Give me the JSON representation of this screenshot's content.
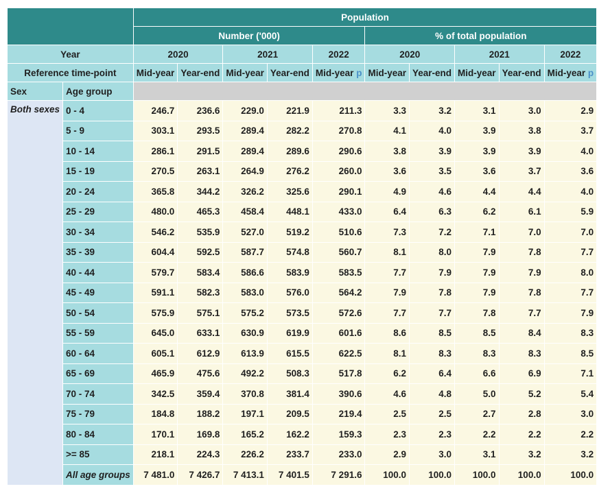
{
  "header": {
    "population": "Population",
    "number": "Number ('000)",
    "percent": "% of total population",
    "year_label": "Year",
    "years": [
      "2020",
      "2021",
      "2022",
      "2020",
      "2021",
      "2022"
    ],
    "ref_label": "Reference time-point",
    "ref_points": [
      "Mid-year",
      "Year-end",
      "Mid-year",
      "Year-end",
      "Mid-year",
      "Mid-year",
      "Year-end",
      "Mid-year",
      "Year-end",
      "Mid-year"
    ],
    "provisional_flag": "p",
    "sex_label": "Sex",
    "age_label": "Age  group"
  },
  "sex": "Both sexes",
  "rows": [
    {
      "age": "0 - 4",
      "values": [
        "246.7",
        "236.6",
        "229.0",
        "221.9",
        "211.3",
        "3.3",
        "3.2",
        "3.1",
        "3.0",
        "2.9"
      ]
    },
    {
      "age": "5 - 9",
      "values": [
        "303.1",
        "293.5",
        "289.4",
        "282.2",
        "270.8",
        "4.1",
        "4.0",
        "3.9",
        "3.8",
        "3.7"
      ]
    },
    {
      "age": "10 - 14",
      "values": [
        "286.1",
        "291.5",
        "289.4",
        "289.6",
        "290.6",
        "3.8",
        "3.9",
        "3.9",
        "3.9",
        "4.0"
      ]
    },
    {
      "age": "15 - 19",
      "values": [
        "270.5",
        "263.1",
        "264.9",
        "276.2",
        "260.0",
        "3.6",
        "3.5",
        "3.6",
        "3.7",
        "3.6"
      ]
    },
    {
      "age": "20 - 24",
      "values": [
        "365.8",
        "344.2",
        "326.2",
        "325.6",
        "290.1",
        "4.9",
        "4.6",
        "4.4",
        "4.4",
        "4.0"
      ]
    },
    {
      "age": "25 - 29",
      "values": [
        "480.0",
        "465.3",
        "458.4",
        "448.1",
        "433.0",
        "6.4",
        "6.3",
        "6.2",
        "6.1",
        "5.9"
      ]
    },
    {
      "age": "30 - 34",
      "values": [
        "546.2",
        "535.9",
        "527.0",
        "519.2",
        "510.6",
        "7.3",
        "7.2",
        "7.1",
        "7.0",
        "7.0"
      ]
    },
    {
      "age": "35 - 39",
      "values": [
        "604.4",
        "592.5",
        "587.7",
        "574.8",
        "560.7",
        "8.1",
        "8.0",
        "7.9",
        "7.8",
        "7.7"
      ]
    },
    {
      "age": "40 - 44",
      "values": [
        "579.7",
        "583.4",
        "586.6",
        "583.9",
        "583.5",
        "7.7",
        "7.9",
        "7.9",
        "7.9",
        "8.0"
      ]
    },
    {
      "age": "45 - 49",
      "values": [
        "591.1",
        "582.3",
        "583.0",
        "576.0",
        "564.2",
        "7.9",
        "7.8",
        "7.9",
        "7.8",
        "7.7"
      ]
    },
    {
      "age": "50 - 54",
      "values": [
        "575.9",
        "575.1",
        "575.2",
        "573.5",
        "572.6",
        "7.7",
        "7.7",
        "7.8",
        "7.7",
        "7.9"
      ]
    },
    {
      "age": "55 - 59",
      "values": [
        "645.0",
        "633.1",
        "630.9",
        "619.9",
        "601.6",
        "8.6",
        "8.5",
        "8.5",
        "8.4",
        "8.3"
      ]
    },
    {
      "age": "60 - 64",
      "values": [
        "605.1",
        "612.9",
        "613.9",
        "615.5",
        "622.5",
        "8.1",
        "8.3",
        "8.3",
        "8.3",
        "8.5"
      ]
    },
    {
      "age": "65 - 69",
      "values": [
        "465.9",
        "475.6",
        "492.2",
        "508.3",
        "517.8",
        "6.2",
        "6.4",
        "6.6",
        "6.9",
        "7.1"
      ]
    },
    {
      "age": "70 - 74",
      "values": [
        "342.5",
        "359.4",
        "370.8",
        "381.4",
        "390.6",
        "4.6",
        "4.8",
        "5.0",
        "5.2",
        "5.4"
      ]
    },
    {
      "age": "75 - 79",
      "values": [
        "184.8",
        "188.2",
        "197.1",
        "209.5",
        "219.4",
        "2.5",
        "2.5",
        "2.7",
        "2.8",
        "3.0"
      ]
    },
    {
      "age": "80 - 84",
      "values": [
        "170.1",
        "169.8",
        "165.2",
        "162.2",
        "159.3",
        "2.3",
        "2.3",
        "2.2",
        "2.2",
        "2.2"
      ]
    },
    {
      "age": ">= 85",
      "values": [
        "218.1",
        "224.3",
        "226.2",
        "233.7",
        "233.0",
        "2.9",
        "3.0",
        "3.1",
        "3.2",
        "3.2"
      ]
    },
    {
      "age": "All age groups",
      "values": [
        "7 481.0",
        "7 426.7",
        "7 413.1",
        "7 401.5",
        "7 291.6",
        "100.0",
        "100.0",
        "100.0",
        "100.0",
        "100.0"
      ],
      "italic": true
    }
  ]
}
